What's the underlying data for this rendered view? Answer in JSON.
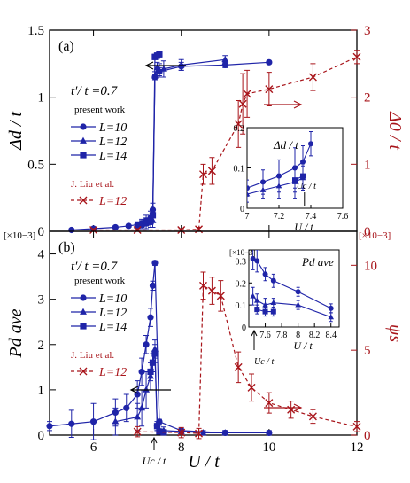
{
  "colors": {
    "left": "#1f24a8",
    "right": "#a8141a",
    "frame": "#000000"
  },
  "chart_data": [
    {
      "panel_label": "(a)",
      "type": "scatter",
      "param_text": "t′/ t =0.7",
      "xlim": [
        5,
        12
      ],
      "ylim_left": [
        0,
        1.5
      ],
      "ylim_right": [
        0,
        3
      ],
      "xticks": [
        "6",
        "8",
        "10",
        "12"
      ],
      "yticks_left": [
        "0",
        "0.5",
        "1",
        "1.5"
      ],
      "yticks_right": [
        "0",
        "1",
        "2",
        "3"
      ],
      "ylabel_left": "Δd / t",
      "ylabel_right": "Δ0 / t",
      "legend_title": "present work",
      "legend_ref": "J. Liu et al.",
      "series": [
        {
          "name": "L=10",
          "axis": "left",
          "marker": "circle",
          "x": [
            5.5,
            6.0,
            6.5,
            6.8,
            7.0,
            7.1,
            7.2,
            7.3,
            7.35,
            7.4,
            7.5,
            8.0,
            9.0,
            10.0
          ],
          "y": [
            0.01,
            0.02,
            0.03,
            0.04,
            0.05,
            0.06,
            0.08,
            0.1,
            0.16,
            1.15,
            1.19,
            1.23,
            1.24,
            1.26
          ],
          "err": [
            0.01,
            0.01,
            0.01,
            0.01,
            0.02,
            0.03,
            0.04,
            0.05,
            0.05,
            0.02,
            0.03,
            0.03,
            0.02,
            0.01
          ]
        },
        {
          "name": "L=12",
          "axis": "left",
          "marker": "triangle",
          "x": [
            7.0,
            7.1,
            7.2,
            7.3,
            7.35,
            7.4,
            7.45,
            7.5,
            7.6,
            8.0,
            9.0
          ],
          "y": [
            0.04,
            0.05,
            0.06,
            0.07,
            0.08,
            1.16,
            1.22,
            1.2,
            1.21,
            1.24,
            1.28
          ],
          "err": [
            0.03,
            0.03,
            0.04,
            0.04,
            0.05,
            0.03,
            0.04,
            0.05,
            0.06,
            0.04,
            0.03
          ]
        },
        {
          "name": "L=14",
          "axis": "left",
          "marker": "square",
          "x": [
            7.3,
            7.35,
            7.4,
            7.45,
            7.5
          ],
          "y": [
            0.08,
            0.12,
            1.3,
            1.31,
            1.32
          ],
          "err": [
            0.03,
            0.05,
            0.02,
            0.02,
            0.02
          ]
        },
        {
          "name": "L=12",
          "axis": "right",
          "marker": "x",
          "dashed": true,
          "x": [
            6.0,
            7.0,
            8.0,
            8.4,
            8.5,
            8.7,
            9.3,
            9.4,
            9.5,
            10.0,
            11.0,
            12.0
          ],
          "y": [
            0.02,
            0.02,
            0.02,
            0.03,
            0.85,
            0.9,
            1.6,
            1.9,
            2.05,
            2.12,
            2.3,
            2.6
          ],
          "err": [
            0.02,
            0.02,
            0.02,
            0.03,
            0.15,
            0.2,
            0.35,
            0.45,
            0.35,
            0.25,
            0.2,
            0.1
          ]
        }
      ],
      "arrows": {
        "left": "←",
        "right": "→"
      },
      "inset": {
        "xlim": [
          7.0,
          7.6
        ],
        "ylim": [
          0,
          0.2
        ],
        "xticks": [
          "7",
          "7.2",
          "7.4",
          "7.6"
        ],
        "yticks": [
          "0",
          "0.1",
          "0.2"
        ],
        "xlabel": "U / t",
        "ylabel": "Δd / t",
        "mark_label": "Uc / t",
        "series": [
          {
            "marker": "circle",
            "x": [
              7.0,
              7.1,
              7.2,
              7.3,
              7.35,
              7.4
            ],
            "y": [
              0.05,
              0.065,
              0.08,
              0.1,
              0.115,
              0.16
            ],
            "err": [
              0.02,
              0.03,
              0.04,
              0.05,
              0.04,
              0.03
            ]
          },
          {
            "marker": "triangle",
            "x": [
              7.0,
              7.1,
              7.2,
              7.3,
              7.35
            ],
            "y": [
              0.035,
              0.045,
              0.055,
              0.065,
              0.075
            ],
            "err": [
              0.02,
              0.02,
              0.03,
              0.04,
              0.03
            ]
          },
          {
            "marker": "square",
            "x": [
              7.3,
              7.35
            ],
            "y": [
              0.07,
              0.08
            ],
            "err": [
              0.03,
              0.03
            ]
          }
        ]
      }
    },
    {
      "panel_label": "(b)",
      "type": "scatter",
      "param_text": "t′/ t =0.7",
      "xlim": [
        5,
        12
      ],
      "ylim_left": [
        0,
        4.5
      ],
      "ylim_right": [
        0,
        12
      ],
      "xticks": [
        "6",
        "8",
        "10",
        "12"
      ],
      "yticks_left": [
        "0",
        "1",
        "2",
        "3",
        "4"
      ],
      "yticks_right": [
        "0",
        "5",
        "10"
      ],
      "scale_left": "[×10−3]",
      "scale_right": "[×10−3]",
      "xlabel": "U / t",
      "xmark_label": "Uc / t",
      "ylabel_left": "Pd ave",
      "ylabel_right": "ψs",
      "legend_title": "present work",
      "legend_ref": "J. Liu et al.",
      "series": [
        {
          "name": "L=10",
          "axis": "left",
          "marker": "circle",
          "x": [
            5.0,
            5.5,
            6.0,
            6.5,
            6.75,
            7.0,
            7.1,
            7.2,
            7.3,
            7.35,
            7.4,
            7.5,
            8.0,
            9.0,
            10.0
          ],
          "y": [
            0.2,
            0.25,
            0.3,
            0.5,
            0.6,
            0.9,
            1.4,
            2.0,
            2.6,
            3.3,
            3.8,
            0.3,
            0.1,
            0.05,
            0.05
          ],
          "err": [
            0.1,
            0.3,
            0.4,
            0.3,
            0.3,
            0.3,
            0.3,
            0.2,
            0.2,
            0.1,
            0.05,
            0.05,
            0.05,
            0.05,
            0.05
          ]
        },
        {
          "name": "L=12",
          "axis": "left",
          "marker": "triangle",
          "x": [
            6.5,
            7.0,
            7.1,
            7.2,
            7.3,
            7.4,
            7.45,
            7.5,
            7.6,
            8.0,
            8.5,
            9.0
          ],
          "y": [
            0.3,
            0.4,
            0.6,
            1.0,
            1.3,
            1.9,
            0.25,
            0.12,
            0.1,
            0.08,
            0.05,
            0.05
          ],
          "err": [
            0.3,
            0.3,
            0.4,
            0.4,
            0.3,
            0.2,
            0.15,
            0.1,
            0.08,
            0.05,
            0.05,
            0.05
          ]
        },
        {
          "name": "L=14",
          "axis": "left",
          "marker": "square",
          "x": [
            7.3,
            7.35,
            7.4,
            7.45,
            7.5,
            7.6
          ],
          "y": [
            1.4,
            1.6,
            1.8,
            0.2,
            0.08,
            0.06
          ],
          "err": [
            0.2,
            0.2,
            0.2,
            0.1,
            0.05,
            0.05
          ]
        },
        {
          "name": "L=12",
          "axis": "right",
          "marker": "x",
          "dashed": true,
          "x": [
            7.0,
            8.0,
            8.4,
            8.5,
            8.7,
            8.9,
            9.3,
            9.6,
            10.0,
            10.5,
            11.0,
            12.0
          ],
          "y": [
            0.2,
            0.15,
            0.1,
            8.8,
            8.5,
            8.2,
            4.0,
            2.8,
            1.9,
            1.5,
            1.1,
            0.5
          ],
          "err": [
            0.3,
            0.3,
            0.3,
            0.8,
            0.8,
            0.9,
            0.9,
            0.8,
            0.6,
            0.5,
            0.4,
            0.3
          ]
        }
      ],
      "arrows": {
        "left": "←",
        "right": "→"
      },
      "inset": {
        "xlim": [
          7.4,
          8.5
        ],
        "ylim": [
          0,
          0.35
        ],
        "xticks": [
          "7.6",
          "7.8",
          "8",
          "8.2",
          "8.4"
        ],
        "yticks": [
          "0",
          "0.1",
          "0.2",
          "0.3"
        ],
        "scale": "[×10−3]",
        "xlabel": "U / t",
        "ylabel": "Pd ave",
        "mark_label": "Uc / t",
        "series": [
          {
            "marker": "circle",
            "x": [
              7.45,
              7.5,
              7.6,
              7.7,
              8.0,
              8.4
            ],
            "y": [
              0.31,
              0.3,
              0.24,
              0.21,
              0.16,
              0.085
            ],
            "err": [
              0.05,
              0.05,
              0.03,
              0.03,
              0.02,
              0.02
            ]
          },
          {
            "marker": "triangle",
            "x": [
              7.45,
              7.5,
              7.6,
              7.7,
              8.0,
              8.4
            ],
            "y": [
              0.14,
              0.12,
              0.1,
              0.11,
              0.1,
              0.045
            ],
            "err": [
              0.04,
              0.03,
              0.03,
              0.02,
              0.02,
              0.02
            ]
          },
          {
            "marker": "square",
            "x": [
              7.5,
              7.6,
              7.7
            ],
            "y": [
              0.08,
              0.07,
              0.07
            ],
            "err": [
              0.02,
              0.02,
              0.02
            ]
          }
        ]
      }
    }
  ]
}
